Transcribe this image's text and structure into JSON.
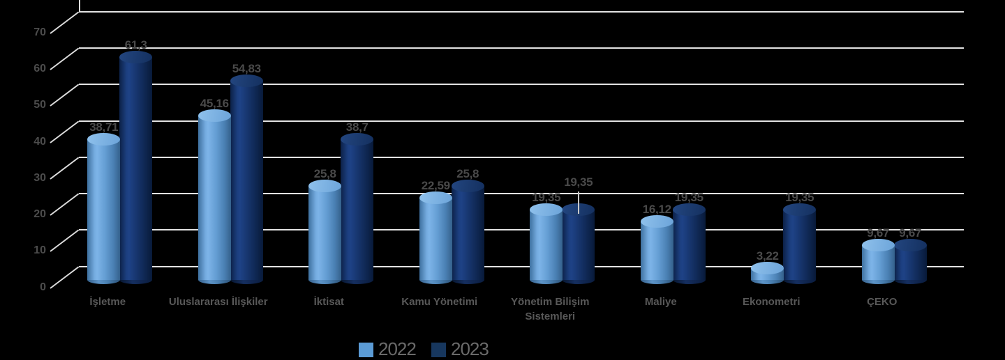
{
  "chart_data": {
    "type": "bar",
    "style": "3d-cylinder",
    "title": "",
    "categories": [
      "İşletme",
      "Uluslararası İlişkiler",
      "İktisat",
      "Kamu Yönetimi",
      "Yönetim Bilişim Sistemleri",
      "Maliye",
      "Ekonometri",
      "ÇEKO"
    ],
    "series": [
      {
        "name": "2022",
        "color": "#5B9BD5",
        "values": [
          38.71,
          45.16,
          25.8,
          22.59,
          19.35,
          16.12,
          3.22,
          9.67
        ],
        "value_labels": [
          "38,71",
          "45,16",
          "25,8",
          "22,59",
          "19,35",
          "16,12",
          "3,22",
          "9,67"
        ]
      },
      {
        "name": "2023",
        "color": "#17375E",
        "values": [
          61.3,
          54.83,
          38.7,
          25.8,
          19.35,
          19.35,
          19.35,
          9.67
        ],
        "value_labels": [
          "61,3",
          "54,83",
          "38,7",
          "25,8",
          "19,35",
          "19,35",
          "19,35",
          "9,67"
        ]
      }
    ],
    "y_axis": {
      "ticks": [
        "0",
        "10",
        "20",
        "30",
        "40",
        "50",
        "60",
        "70"
      ],
      "min": 0,
      "max": 70
    },
    "grid": true,
    "legend": {
      "position": "bottom",
      "entries": [
        "2022",
        "2023"
      ]
    },
    "label_adjustments": [
      {
        "series_index": 1,
        "category_index": 4,
        "raised_with_leader_line": true
      }
    ]
  },
  "colors": {
    "background": "#000000",
    "gridline": "#e3e3e3",
    "tick_text": "#4c4c4c",
    "value_label_text": "#4a4a4a",
    "category_text": "#585858",
    "legend_text": "#6a6a6a",
    "series_2022": "#5B9BD5",
    "series_2023": "#17375E"
  }
}
